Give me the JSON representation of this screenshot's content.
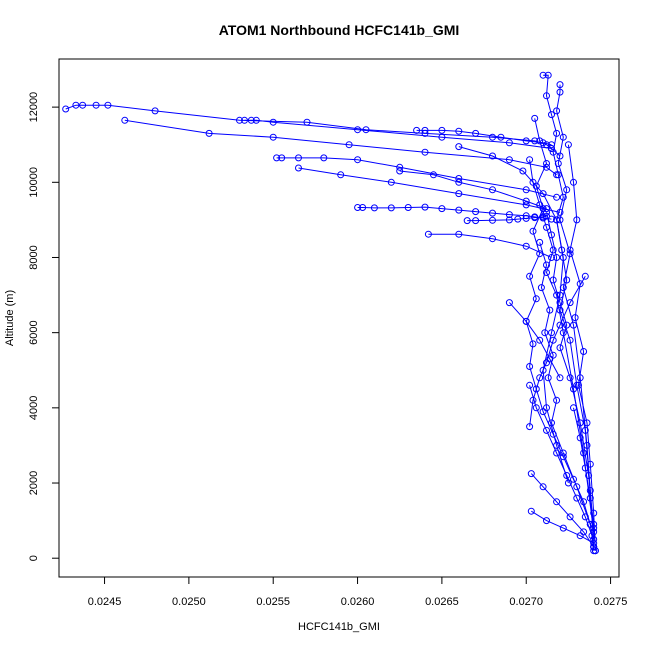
{
  "chart_data": {
    "type": "line",
    "title": "ATOM1 Northbound HCFC141b_GMI",
    "xlabel": "HCFC141b_GMI",
    "ylabel": "Altitude (m)",
    "xlim": [
      0.02423,
      0.02755
    ],
    "ylim": [
      -500,
      13280
    ],
    "x_ticks": [
      0.0245,
      0.025,
      0.0255,
      0.026,
      0.0265,
      0.027,
      0.0275
    ],
    "x_tick_labels": [
      "0.0245",
      "0.0250",
      "0.0255",
      "0.0260",
      "0.0265",
      "0.0270",
      "0.0275"
    ],
    "y_ticks": [
      0,
      2000,
      4000,
      6000,
      8000,
      10000,
      12000
    ],
    "y_tick_labels": [
      "0",
      "2000",
      "4000",
      "6000",
      "8000",
      "10000",
      "12000"
    ],
    "grid": false,
    "legend": "none",
    "color": "#0000ff",
    "marker": "open-circle",
    "series": [
      {
        "x": [
          0.02427,
          0.02433,
          0.02437,
          0.02445,
          0.02452,
          0.0248,
          0.0253,
          0.0257,
          0.02605,
          0.0264,
          0.0268,
          0.02705,
          0.02712,
          0.02715
        ],
        "y": [
          11950,
          12050,
          12050,
          12050,
          12050,
          11900,
          11650,
          11600,
          11400,
          11300,
          11200,
          11100,
          11000,
          10900
        ]
      },
      {
        "x": [
          0.02462,
          0.02512,
          0.0255,
          0.02595,
          0.0264,
          0.0269,
          0.02712,
          0.02718
        ],
        "y": [
          11650,
          11300,
          11200,
          11000,
          10800,
          10600,
          10400,
          10200
        ]
      },
      {
        "x": [
          0.02533,
          0.02537,
          0.0254,
          0.0255,
          0.026,
          0.0265,
          0.0269,
          0.02715,
          0.0272
        ],
        "y": [
          11650,
          11650,
          11650,
          11600,
          11400,
          11200,
          11050,
          10900,
          10700
        ]
      },
      {
        "x": [
          0.02552,
          0.02555,
          0.02565,
          0.0258,
          0.026,
          0.02625,
          0.0266,
          0.027,
          0.02718
        ],
        "y": [
          10650,
          10650,
          10650,
          10650,
          10600,
          10400,
          10100,
          9800,
          9600
        ]
      },
      {
        "x": [
          0.02565,
          0.0259,
          0.0262,
          0.0266,
          0.027,
          0.0272
        ],
        "y": [
          10380,
          10200,
          10000,
          9700,
          9400,
          9200
        ]
      },
      {
        "x": [
          0.026,
          0.02603,
          0.0261,
          0.0262,
          0.0263,
          0.0264,
          0.0265,
          0.0266,
          0.0267,
          0.0268,
          0.0269,
          0.027,
          0.02705,
          0.0271,
          0.02715
        ],
        "y": [
          9330,
          9330,
          9320,
          9320,
          9330,
          9340,
          9300,
          9260,
          9220,
          9180,
          9140,
          9110,
          9080,
          9050,
          9020
        ]
      },
      {
        "x": [
          0.02635,
          0.0264,
          0.0265,
          0.0266,
          0.0267,
          0.02685,
          0.027,
          0.0271,
          0.02715
        ],
        "y": [
          11380,
          11380,
          11380,
          11360,
          11300,
          11200,
          11100,
          11050,
          11000
        ]
      },
      {
        "x": [
          0.02665,
          0.0267,
          0.0268,
          0.0269,
          0.02695,
          0.027,
          0.02705,
          0.0271,
          0.02712
        ],
        "y": [
          8980,
          8980,
          8990,
          9000,
          9020,
          9040,
          9060,
          9080,
          9100
        ]
      },
      {
        "x": [
          0.02642,
          0.0266,
          0.0268,
          0.027,
          0.02715
        ],
        "y": [
          8620,
          8620,
          8500,
          8300,
          8000
        ]
      },
      {
        "x": [
          0.02625,
          0.02645,
          0.0266,
          0.0268,
          0.027,
          0.02712
        ],
        "y": [
          10300,
          10200,
          10000,
          9800,
          9500,
          9300
        ]
      },
      {
        "x": [
          0.0266,
          0.0268,
          0.02698,
          0.0271,
          0.02718,
          0.02722,
          0.0272,
          0.02715,
          0.0271,
          0.02712,
          0.02718,
          0.02725
        ],
        "y": [
          10950,
          10700,
          10300,
          9700,
          9000,
          8000,
          7000,
          6000,
          5000,
          4000,
          3000,
          2000
        ]
      },
      {
        "x": [
          0.0271,
          0.02713,
          0.02712,
          0.02715,
          0.02718,
          0.02716,
          0.02719,
          0.02722,
          0.02718,
          0.02721,
          0.02724,
          0.0272,
          0.02726,
          0.0273,
          0.02735,
          0.02738,
          0.0274
        ],
        "y": [
          12850,
          12850,
          12300,
          11800,
          11300,
          10800,
          10200,
          9600,
          9000,
          8200,
          7400,
          6600,
          5800,
          4600,
          3400,
          1800,
          300
        ]
      },
      {
        "x": [
          0.0272,
          0.0272,
          0.02718,
          0.02722,
          0.02719,
          0.02724,
          0.0272,
          0.02726,
          0.02722,
          0.02728,
          0.02732,
          0.02736,
          0.0274
        ],
        "y": [
          12600,
          12400,
          11900,
          11200,
          10500,
          9800,
          9000,
          8100,
          7200,
          6200,
          4800,
          3000,
          500
        ]
      },
      {
        "x": [
          0.02705,
          0.02708,
          0.02712,
          0.02706,
          0.0271,
          0.02704,
          0.02708,
          0.02702,
          0.02706,
          0.027,
          0.02704,
          0.02702,
          0.02706,
          0.0271,
          0.02716,
          0.02722,
          0.02728,
          0.02734,
          0.02738,
          0.0274
        ],
        "y": [
          11700,
          11100,
          10500,
          9900,
          9300,
          8700,
          8100,
          7500,
          6900,
          6300,
          5700,
          5100,
          4500,
          3900,
          3300,
          2700,
          2100,
          1500,
          900,
          300
        ]
      },
      {
        "x": [
          0.02702,
          0.02704,
          0.02708,
          0.02712,
          0.02716,
          0.02712,
          0.02718,
          0.02722,
          0.02728,
          0.02734,
          0.0274
        ],
        "y": [
          10600,
          10000,
          9400,
          8800,
          8200,
          7600,
          7000,
          6000,
          4500,
          2800,
          700
        ]
      },
      {
        "x": [
          0.02725,
          0.02728,
          0.0273,
          0.02726,
          0.02732,
          0.02729,
          0.02734,
          0.02731,
          0.02736,
          0.02738,
          0.0274,
          0.02741
        ],
        "y": [
          11000,
          10000,
          9000,
          8200,
          7300,
          6400,
          5500,
          4600,
          3600,
          2500,
          1200,
          200
        ]
      },
      {
        "x": [
          0.02735,
          0.02726,
          0.0272,
          0.02716,
          0.02712,
          0.02708,
          0.02704,
          0.02702
        ],
        "y": [
          7500,
          6800,
          6200,
          5800,
          5200,
          4800,
          4200,
          3500
        ]
      },
      {
        "x": [
          0.02702,
          0.02706,
          0.02712,
          0.02718,
          0.02724,
          0.0273,
          0.02735,
          0.02739,
          0.0274
        ],
        "y": [
          4600,
          4000,
          3400,
          2800,
          2200,
          1600,
          1100,
          600,
          200
        ]
      },
      {
        "x": [
          0.02703,
          0.0271,
          0.02718,
          0.02726,
          0.02734,
          0.0274
        ],
        "y": [
          2250,
          1900,
          1500,
          1100,
          700,
          300
        ]
      },
      {
        "x": [
          0.02703,
          0.02712,
          0.02722,
          0.02732,
          0.0274
        ],
        "y": [
          1250,
          1000,
          800,
          600,
          400
        ]
      },
      {
        "x": [
          0.02712,
          0.02715,
          0.02718,
          0.02716,
          0.0272,
          0.02724,
          0.0272,
          0.02726,
          0.02732,
          0.02737,
          0.0274
        ],
        "y": [
          9200,
          8600,
          8000,
          7400,
          6800,
          6200,
          5600,
          4800,
          3600,
          2200,
          800
        ]
      },
      {
        "x": [
          0.02708,
          0.02712,
          0.02709,
          0.02714,
          0.02711,
          0.02716,
          0.02713,
          0.02718,
          0.02715,
          0.02722,
          0.0273,
          0.02738
        ],
        "y": [
          8400,
          7800,
          7200,
          6600,
          6000,
          5400,
          4800,
          4200,
          3600,
          2800,
          1900,
          900
        ]
      },
      {
        "x": [
          0.0269,
          0.027,
          0.02708,
          0.02714,
          0.0272
        ],
        "y": [
          6800,
          6300,
          5800,
          5300,
          4800
        ]
      },
      {
        "x": [
          0.02728,
          0.02732,
          0.02735,
          0.02738,
          0.0274,
          0.02741
        ],
        "y": [
          4000,
          3200,
          2400,
          1600,
          900,
          200
        ]
      }
    ]
  }
}
